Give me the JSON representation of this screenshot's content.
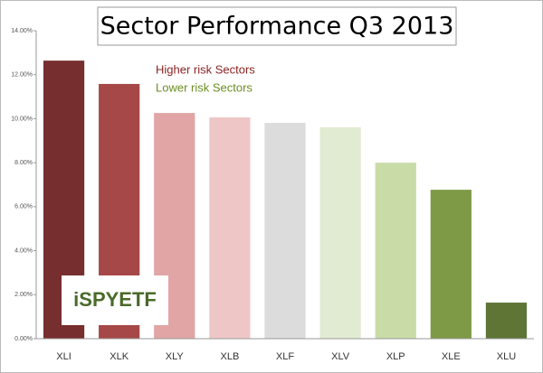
{
  "chart_data": {
    "type": "bar",
    "title": "Sector Performance Q3 2013",
    "categories": [
      "XLI",
      "XLK",
      "XLY",
      "XLB",
      "XLF",
      "XLV",
      "XLP",
      "XLE",
      "XLU"
    ],
    "values": [
      12.64,
      11.58,
      10.26,
      10.06,
      9.81,
      9.61,
      8.0,
      6.77,
      1.64
    ],
    "colors": [
      "#772e2e",
      "#a64848",
      "#e1a5a5",
      "#eec6c6",
      "#dcdcdc",
      "#e1ebd1",
      "#c9dba7",
      "#7e9a46",
      "#5e7535"
    ],
    "ylim": [
      0,
      14
    ],
    "yticks": [
      {
        "value": 0,
        "label": "0.00%"
      },
      {
        "value": 2,
        "label": "2.00%"
      },
      {
        "value": 4,
        "label": "4.00%"
      },
      {
        "value": 6,
        "label": "6.00%"
      },
      {
        "value": 8,
        "label": "8.00%"
      },
      {
        "value": 10,
        "label": "10.00%"
      },
      {
        "value": 12,
        "label": "12.00%"
      },
      {
        "value": 14,
        "label": "14.00%"
      }
    ],
    "grid": false,
    "annotations": [
      {
        "text": "Higher risk Sectors",
        "color": "#8b2323"
      },
      {
        "text": "Lower risk Sectors",
        "color": "#6b8e23"
      }
    ],
    "logo": "iSPYETF"
  }
}
